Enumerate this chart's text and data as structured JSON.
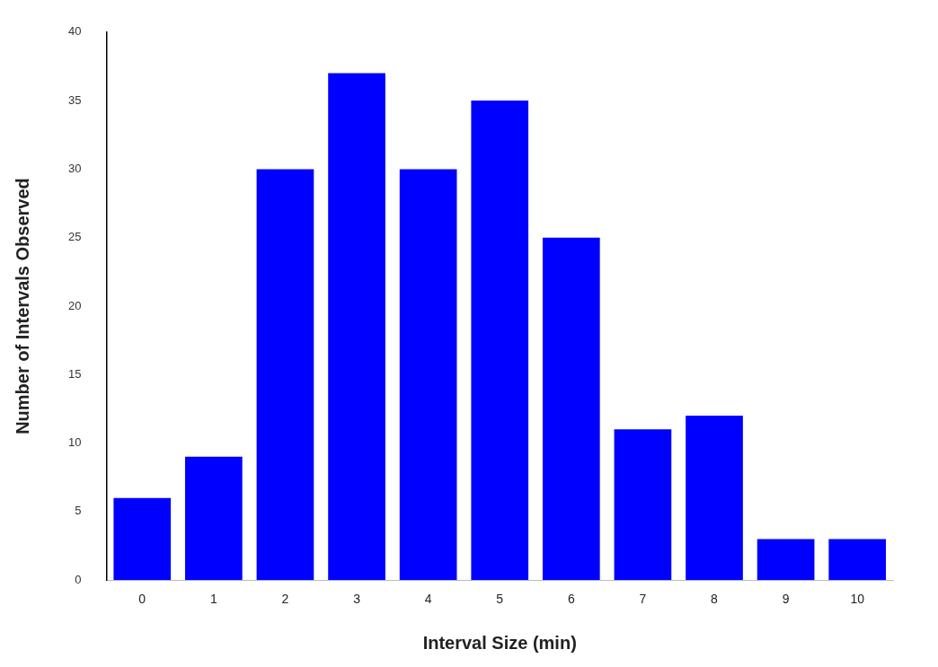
{
  "chart_data": {
    "type": "bar",
    "xlabel": "Interval Size (min)",
    "ylabel": "Number of Intervals Observed",
    "categories": [
      "0",
      "1",
      "2",
      "3",
      "4",
      "5",
      "6",
      "7",
      "8",
      "9",
      "10"
    ],
    "values": [
      6,
      9,
      30,
      37,
      30,
      35,
      25,
      11,
      12,
      3,
      3
    ],
    "color": "#0000ff",
    "ylim": [
      0,
      40
    ],
    "yticks": [
      0,
      5,
      10,
      15,
      20,
      25,
      30,
      35,
      40
    ],
    "grid": false,
    "legend": false
  }
}
